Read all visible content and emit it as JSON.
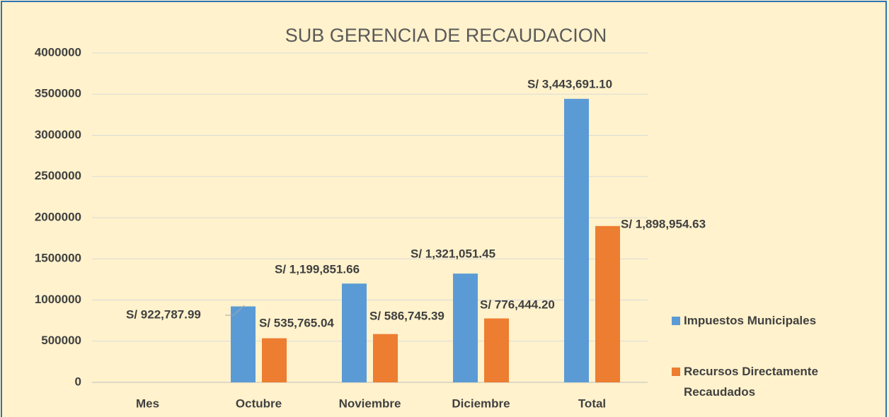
{
  "chart_data": {
    "type": "bar",
    "title": "SUB GERENCIA DE RECAUDACION",
    "categories": [
      "Mes",
      "Octubre",
      "Noviembre",
      "Diciembre",
      "Total"
    ],
    "series": [
      {
        "name": "Impuestos Municipales",
        "color": "#5b9bd5",
        "values": [
          null,
          922787.99,
          1199851.66,
          1321051.45,
          3443691.1
        ],
        "value_labels": [
          null,
          "S/ 922,787.99",
          "S/ 1,199,851.66",
          "S/ 1,321,051.45",
          "S/ 3,443,691.10"
        ]
      },
      {
        "name": "Recursos Directamente Recaudados",
        "color": "#ed7d31",
        "values": [
          null,
          535765.04,
          586745.39,
          776444.2,
          1898954.63
        ],
        "value_labels": [
          null,
          "S/ 535,765.04",
          "S/ 586,745.39",
          "S/ 776,444.20",
          "S/ 1,898,954.63"
        ]
      }
    ],
    "ylim": [
      0,
      4000000
    ],
    "yticks": [
      0,
      500000,
      1000000,
      1500000,
      2000000,
      2500000,
      3000000,
      3500000,
      4000000
    ],
    "grid": true,
    "legend": "right"
  }
}
